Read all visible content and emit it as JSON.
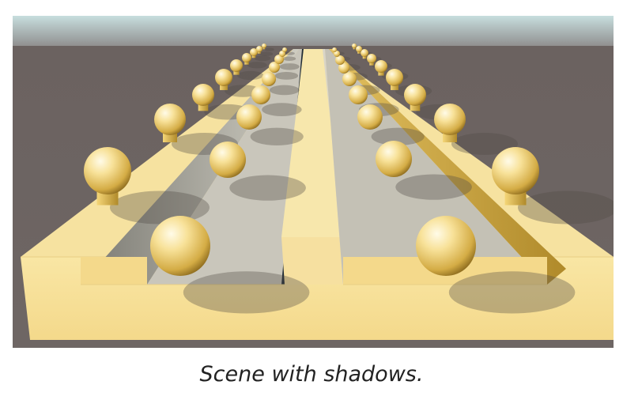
{
  "figure": {
    "caption": "Scene with shadows.",
    "sky_color": "#a9c6c9",
    "ground_color": "#6f6664",
    "block_color": "#f6e3a1",
    "sphere_color": "#f2cf63"
  }
}
